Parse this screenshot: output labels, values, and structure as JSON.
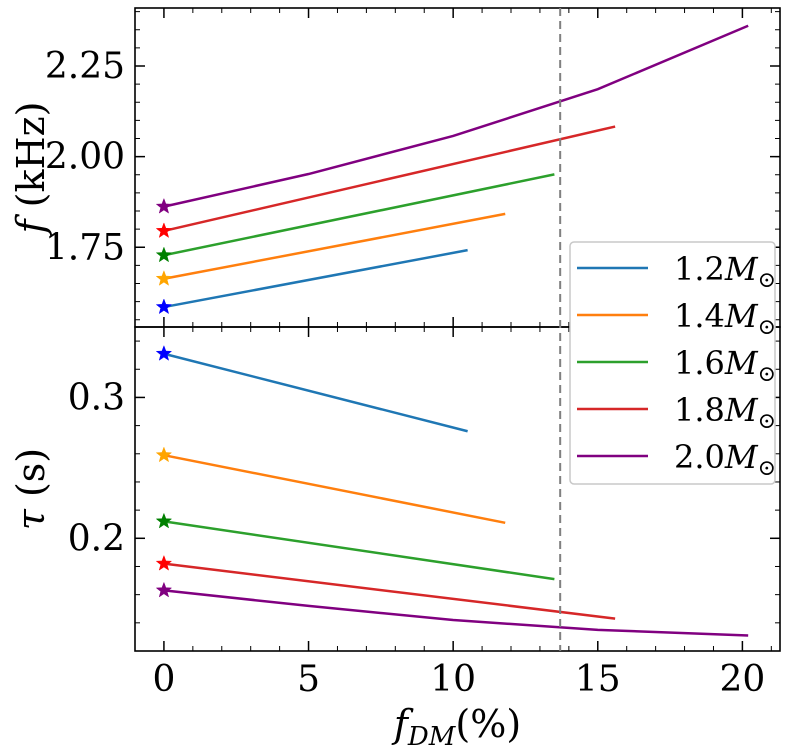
{
  "chart_data": [
    {
      "type": "line",
      "panel": "top",
      "ylabel_symbol": "f",
      "ylabel_unit": " (kHz)",
      "ylim": [
        1.53,
        2.41
      ],
      "yticks": [
        {
          "value": 1.75,
          "label": "1.75"
        },
        {
          "value": 2.0,
          "label": "2.00"
        },
        {
          "value": 2.25,
          "label": "2.25"
        }
      ],
      "series": [
        {
          "name": "1.2",
          "color": "#1f77b4",
          "star_color": "#0000ff",
          "x": [
            0,
            10.5
          ],
          "y": [
            1.585,
            1.742
          ]
        },
        {
          "name": "1.4",
          "color": "#ff7f0e",
          "star_color": "#ffa500",
          "x": [
            0,
            11.8
          ],
          "y": [
            1.663,
            1.842
          ]
        },
        {
          "name": "1.6",
          "color": "#2ca02c",
          "star_color": "#008000",
          "x": [
            0,
            13.5
          ],
          "y": [
            1.728,
            1.951
          ]
        },
        {
          "name": "1.8",
          "color": "#d62728",
          "star_color": "#ff0000",
          "x": [
            0,
            15.6
          ],
          "y": [
            1.795,
            2.083
          ]
        },
        {
          "name": "2.0",
          "color": "#800080",
          "star_color": "#800080",
          "x": [
            0,
            5,
            10,
            15,
            20.2
          ],
          "y": [
            1.862,
            1.952,
            2.057,
            2.186,
            2.361
          ]
        }
      ]
    },
    {
      "type": "line",
      "panel": "bottom",
      "ylabel_symbol": "τ",
      "ylabel_unit": " (s)",
      "ylim": [
        0.12,
        0.35
      ],
      "yticks": [
        {
          "value": 0.2,
          "label": "0.2"
        },
        {
          "value": 0.3,
          "label": "0.3"
        }
      ],
      "series": [
        {
          "name": "1.2",
          "color": "#1f77b4",
          "star_color": "#0000ff",
          "x": [
            0,
            10.5
          ],
          "y": [
            0.331,
            0.276
          ]
        },
        {
          "name": "1.4",
          "color": "#ff7f0e",
          "star_color": "#ffa500",
          "x": [
            0,
            11.8
          ],
          "y": [
            0.259,
            0.211
          ]
        },
        {
          "name": "1.6",
          "color": "#2ca02c",
          "star_color": "#008000",
          "x": [
            0,
            13.5
          ],
          "y": [
            0.212,
            0.171
          ]
        },
        {
          "name": "1.8",
          "color": "#d62728",
          "star_color": "#ff0000",
          "x": [
            0,
            15.6
          ],
          "y": [
            0.182,
            0.143
          ]
        },
        {
          "name": "2.0",
          "color": "#800080",
          "star_color": "#800080",
          "x": [
            0,
            5,
            10,
            15,
            20.2
          ],
          "y": [
            0.163,
            0.152,
            0.142,
            0.135,
            0.131
          ]
        }
      ]
    }
  ],
  "xaxis": {
    "xlim": [
      -1,
      21.3
    ],
    "ticks": [
      {
        "value": 0,
        "label": "0"
      },
      {
        "value": 5,
        "label": "5"
      },
      {
        "value": 10,
        "label": "10"
      },
      {
        "value": 15,
        "label": "15"
      },
      {
        "value": 20,
        "label": "20"
      }
    ],
    "label_symbol": "f",
    "label_sub": "DM",
    "label_unit": "(%)"
  },
  "vline_x": 13.7,
  "vline_color": "#808080",
  "legend": {
    "placement": "right",
    "entries": [
      {
        "mass": "1.2",
        "unit": "M",
        "sub": "⊙",
        "color": "#1f77b4"
      },
      {
        "mass": "1.4",
        "unit": "M",
        "sub": "⊙",
        "color": "#ff7f0e"
      },
      {
        "mass": "1.6",
        "unit": "M",
        "sub": "⊙",
        "color": "#2ca02c"
      },
      {
        "mass": "1.8",
        "unit": "M",
        "sub": "⊙",
        "color": "#d62728"
      },
      {
        "mass": "2.0",
        "unit": "M",
        "sub": "⊙",
        "color": "#800080"
      }
    ]
  }
}
